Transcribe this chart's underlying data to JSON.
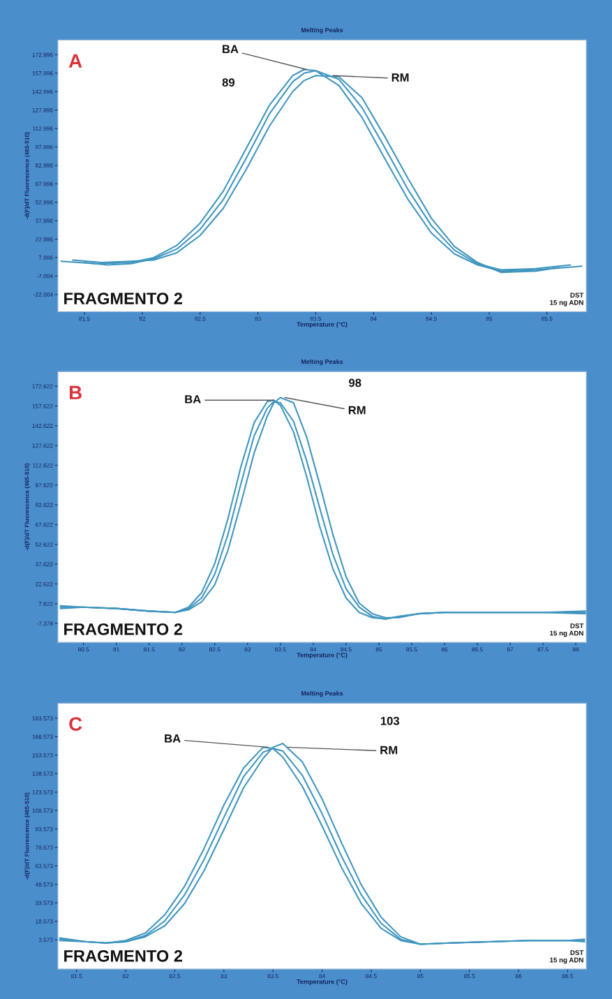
{
  "chart_data": [
    {
      "type": "line",
      "title": "Melting Peaks",
      "xlabel": "Temperature (°C)",
      "ylabel": "-d(F)/dT Fluorescence (465-510)",
      "xlim": [
        81.27,
        85.84
      ],
      "ylim": [
        -36,
        185
      ],
      "xticks": [
        81.5,
        82,
        82.5,
        83,
        83.5,
        84,
        84.5,
        85,
        85.5
      ],
      "yticks": [
        -22.004,
        -7.004,
        7.996,
        22.996,
        37.996,
        52.996,
        67.996,
        82.996,
        97.996,
        112.996,
        127.996,
        142.996,
        157.996,
        172.996
      ],
      "series": [
        {
          "color": "#3f95be",
          "x": [
            81.3,
            81.6,
            81.9,
            82.1,
            82.3,
            82.5,
            82.7,
            82.9,
            83.1,
            83.3,
            83.4,
            83.5,
            83.7,
            83.9,
            84.1,
            84.3,
            84.5,
            84.7,
            84.9,
            85.1,
            85.4,
            85.8
          ],
          "values": [
            5,
            3,
            4,
            8,
            18,
            36,
            62,
            97,
            132,
            156,
            161,
            160,
            148,
            122,
            88,
            55,
            28,
            11,
            2,
            -3,
            -2,
            1
          ]
        },
        {
          "color": "#3f95be",
          "x": [
            81.5,
            81.7,
            81.9,
            82.1,
            82.3,
            82.5,
            82.7,
            82.9,
            83.1,
            83.3,
            83.4,
            83.5,
            83.7,
            83.9,
            84.1,
            84.3,
            84.5,
            84.7,
            84.9,
            85.1,
            85.4,
            85.7
          ],
          "values": [
            4,
            2,
            3,
            7,
            15,
            31,
            55,
            89,
            125,
            151,
            158,
            160,
            153,
            130,
            97,
            63,
            34,
            14,
            3,
            -2,
            -1,
            2
          ]
        },
        {
          "color": "#3f95be",
          "x": [
            81.4,
            81.65,
            81.9,
            82.1,
            82.3,
            82.5,
            82.7,
            82.9,
            83.1,
            83.3,
            83.4,
            83.5,
            83.7,
            83.9,
            84.1,
            84.3,
            84.5,
            84.7,
            84.9,
            85.1,
            85.4,
            85.6
          ],
          "values": [
            6,
            4,
            5,
            6,
            12,
            26,
            48,
            80,
            115,
            143,
            152,
            156,
            155,
            138,
            106,
            72,
            40,
            17,
            4,
            -4,
            -3,
            0
          ]
        }
      ],
      "annotations": [
        "A",
        "FRAGMENTO 2",
        "DST\n15 ng ADN",
        {
          "text": "BA",
          "x": 83.42,
          "y": 161
        },
        "89",
        {
          "text": "RM",
          "x": 83.65,
          "y": 156
        }
      ]
    },
    {
      "type": "line",
      "title": "Melting Peaks",
      "xlabel": "Temperature (°C)",
      "ylabel": "-d(F)/dT Fluorescence (465-510)",
      "xlim": [
        80.11,
        88.16
      ],
      "ylim": [
        -21.7,
        183.7
      ],
      "xticks": [
        80.5,
        81,
        81.5,
        82,
        82.5,
        83,
        83.5,
        84,
        84.5,
        85,
        85.5,
        86,
        86.5,
        87,
        87.5,
        88
      ],
      "yticks": [
        -7.378,
        7.622,
        22.622,
        37.622,
        52.622,
        67.622,
        82.622,
        97.622,
        112.622,
        127.622,
        142.622,
        157.622,
        172.622
      ],
      "series": [
        {
          "color": "#3f95be",
          "x": [
            80.15,
            80.5,
            81,
            81.5,
            81.9,
            82.1,
            82.3,
            82.5,
            82.7,
            82.9,
            83.1,
            83.3,
            83.4,
            83.5,
            83.7,
            83.9,
            84.1,
            84.3,
            84.5,
            84.7,
            84.9,
            85.1,
            85.3,
            85.6,
            86,
            86.5,
            87,
            87.5,
            88.15
          ],
          "values": [
            5,
            5,
            4,
            2,
            1,
            5,
            16,
            38,
            72,
            112,
            145,
            161,
            162,
            158,
            138,
            104,
            66,
            34,
            12,
            1,
            -3,
            -4,
            -2,
            0,
            1,
            1,
            1,
            1,
            1
          ]
        },
        {
          "color": "#3f95be",
          "x": [
            80.15,
            80.5,
            81,
            81.5,
            81.9,
            82.1,
            82.3,
            82.5,
            82.7,
            82.9,
            83.1,
            83.3,
            83.4,
            83.5,
            83.7,
            83.9,
            84.1,
            84.3,
            84.5,
            84.7,
            84.9,
            85.1,
            85.3,
            85.6,
            86,
            86.5,
            87,
            87.5,
            88.15
          ],
          "values": [
            4,
            5,
            4,
            2,
            1,
            4,
            12,
            30,
            60,
            99,
            135,
            156,
            161,
            160,
            146,
            116,
            80,
            45,
            19,
            5,
            -2,
            -4,
            -2,
            0,
            1,
            1,
            1,
            1,
            2
          ]
        },
        {
          "color": "#3f95be",
          "x": [
            80.15,
            80.5,
            81,
            81.5,
            81.9,
            82.1,
            82.3,
            82.5,
            82.7,
            82.9,
            83.1,
            83.3,
            83.4,
            83.5,
            83.7,
            83.9,
            84.1,
            84.3,
            84.5,
            84.7,
            84.9,
            85.1,
            85.3,
            85.6,
            86,
            86.5,
            87,
            87.5,
            88.15
          ],
          "values": [
            6,
            5,
            4,
            2,
            1,
            3,
            9,
            22,
            48,
            84,
            122,
            150,
            160,
            164,
            160,
            134,
            98,
            60,
            28,
            8,
            0,
            -3,
            -3,
            0,
            1,
            1,
            1,
            1,
            0
          ]
        }
      ],
      "annotations": [
        "B",
        "FRAGMENTO 2",
        "DST\n15 ng ADN",
        {
          "text": "BA",
          "x": 83.4,
          "y": 162
        },
        "98",
        {
          "text": "RM",
          "x": 83.57,
          "y": 164
        }
      ]
    },
    {
      "type": "line",
      "title": "Melting Peaks",
      "xlabel": "Temperature (°C)",
      "ylabel": "-d(F)/dT Fluorescence (465-510)",
      "xlim": [
        81.31,
        86.69
      ],
      "ylim": [
        -20.2,
        195.7
      ],
      "xticks": [
        81.5,
        82,
        82.5,
        83,
        83.5,
        84,
        84.5,
        85,
        85.5,
        86,
        86.5
      ],
      "yticks": [
        3.573,
        18.573,
        33.573,
        48.573,
        63.573,
        78.573,
        93.573,
        108.573,
        123.573,
        138.573,
        153.573,
        168.573,
        183.573
      ],
      "series": [
        {
          "color": "#3f95be",
          "x": [
            81.33,
            81.6,
            81.8,
            82,
            82.2,
            82.4,
            82.6,
            82.8,
            83,
            83.2,
            83.4,
            83.5,
            83.6,
            83.8,
            84,
            84.2,
            84.4,
            84.6,
            84.8,
            85,
            85.3,
            85.7,
            86.1,
            86.5,
            86.67
          ],
          "values": [
            4,
            2,
            1,
            3,
            9,
            24,
            47,
            78,
            113,
            143,
            160,
            159,
            152,
            128,
            96,
            62,
            33,
            13,
            3,
            0,
            1,
            2,
            3,
            3,
            3
          ]
        },
        {
          "color": "#3f95be",
          "x": [
            81.33,
            81.6,
            81.8,
            82,
            82.2,
            82.4,
            82.6,
            82.8,
            83,
            83.2,
            83.4,
            83.5,
            83.6,
            83.8,
            84,
            84.2,
            84.4,
            84.6,
            84.8,
            85,
            85.3,
            85.7,
            86.1,
            86.5,
            86.67
          ],
          "values": [
            3,
            2,
            1,
            2,
            7,
            19,
            40,
            69,
            103,
            136,
            156,
            159,
            157,
            137,
            106,
            71,
            40,
            17,
            4,
            0,
            1,
            2,
            3,
            3,
            2
          ]
        },
        {
          "color": "#3f95be",
          "x": [
            81.33,
            81.6,
            81.8,
            82,
            82.2,
            82.4,
            82.6,
            82.8,
            83,
            83.2,
            83.4,
            83.5,
            83.6,
            83.8,
            84,
            84.2,
            84.4,
            84.6,
            84.8,
            85,
            85.3,
            85.7,
            86.1,
            86.5,
            86.67
          ],
          "values": [
            5,
            2,
            1,
            2,
            6,
            15,
            33,
            60,
            93,
            127,
            151,
            160,
            163,
            148,
            118,
            82,
            48,
            22,
            6,
            0,
            1,
            2,
            3,
            3,
            4
          ]
        }
      ],
      "annotations": [
        "C",
        "FRAGMENTO 2",
        "DST\n15 ng ADN",
        {
          "text": "BA",
          "x": 83.45,
          "y": 160
        },
        "103",
        {
          "text": "RM",
          "x": 83.65,
          "y": 160
        }
      ]
    }
  ]
}
